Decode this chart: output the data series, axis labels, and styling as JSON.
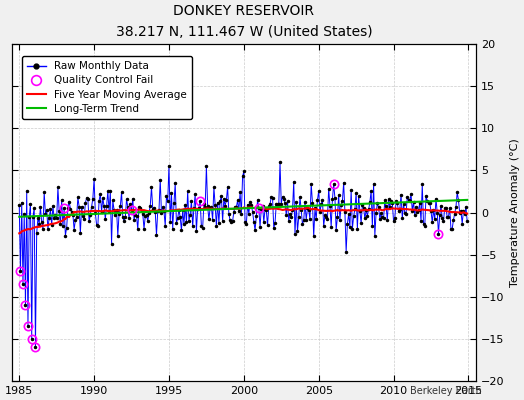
{
  "title": "DONKEY RESERVOIR",
  "subtitle": "38.217 N, 111.467 W (United States)",
  "ylabel": "Temperature Anomaly (°C)",
  "watermark": "Berkeley Earth",
  "xlim": [
    1984.5,
    2015.5
  ],
  "ylim": [
    -20,
    20
  ],
  "yticks": [
    -20,
    -15,
    -10,
    -5,
    0,
    5,
    10,
    15,
    20
  ],
  "xticks": [
    1985,
    1990,
    1995,
    2000,
    2005,
    2010,
    2015
  ],
  "bg_color": "#f0f0f0",
  "plot_bg": "#ffffff",
  "raw_color": "#0000ff",
  "avg_color": "#ff0000",
  "trend_color": "#00bb00",
  "qc_color": "#ff00ff",
  "dot_color": "#000000",
  "grid_color": "#cccccc"
}
